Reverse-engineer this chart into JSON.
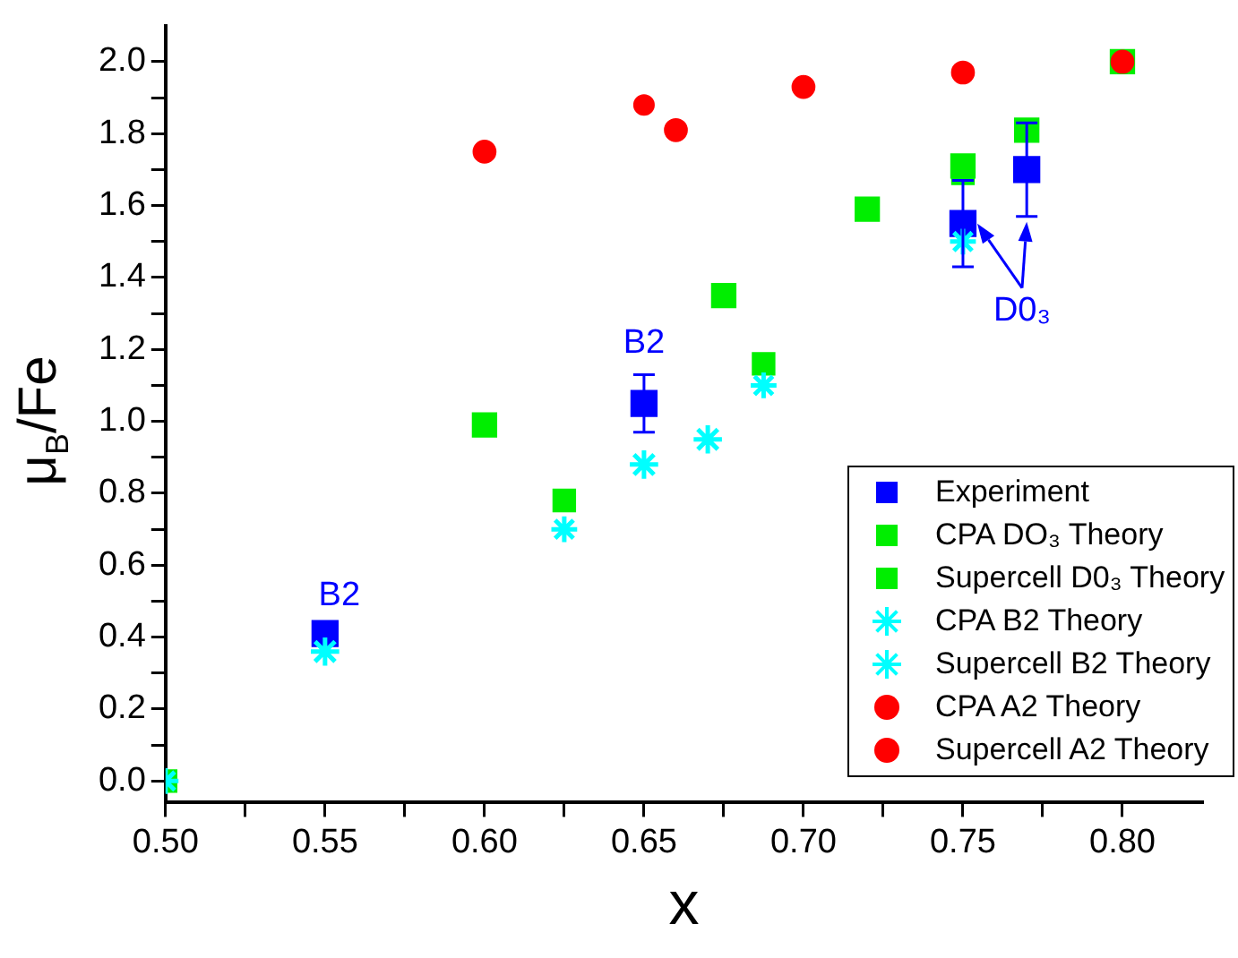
{
  "chart_data": {
    "type": "scatter",
    "xlabel": "x",
    "ylabel": "μ$_{B}$/Fe",
    "xlim": [
      0.5,
      0.825
    ],
    "ylim": [
      -0.06,
      2.1
    ],
    "xticks": [
      {
        "value": 0.5,
        "label": "0.50"
      },
      {
        "value": 0.525,
        "label": null
      },
      {
        "value": 0.55,
        "label": "0.55"
      },
      {
        "value": 0.575,
        "label": null
      },
      {
        "value": 0.6,
        "label": "0.60"
      },
      {
        "value": 0.625,
        "label": null
      },
      {
        "value": 0.65,
        "label": "0.65"
      },
      {
        "value": 0.675,
        "label": null
      },
      {
        "value": 0.7,
        "label": "0.70"
      },
      {
        "value": 0.725,
        "label": null
      },
      {
        "value": 0.75,
        "label": "0.75"
      },
      {
        "value": 0.775,
        "label": null
      },
      {
        "value": 0.8,
        "label": "0.80"
      }
    ],
    "yticks": [
      {
        "value": 0,
        "label": "0.0"
      },
      {
        "value": 0.1,
        "label": null
      },
      {
        "value": 0.2,
        "label": "0.2"
      },
      {
        "value": 0.3,
        "label": null
      },
      {
        "value": 0.4,
        "label": "0.4"
      },
      {
        "value": 0.5,
        "label": null
      },
      {
        "value": 0.6,
        "label": "0.6"
      },
      {
        "value": 0.7,
        "label": null
      },
      {
        "value": 0.8,
        "label": "0.8"
      },
      {
        "value": 0.9,
        "label": null
      },
      {
        "value": 1,
        "label": "1.0"
      },
      {
        "value": 1.1,
        "label": null
      },
      {
        "value": 1.2,
        "label": "1.2"
      },
      {
        "value": 1.3,
        "label": null
      },
      {
        "value": 1.4,
        "label": "1.4"
      },
      {
        "value": 1.5,
        "label": null
      },
      {
        "value": 1.6,
        "label": "1.6"
      },
      {
        "value": 1.7,
        "label": null
      },
      {
        "value": 1.8,
        "label": "1.8"
      },
      {
        "value": 1.9,
        "label": null
      },
      {
        "value": 2,
        "label": "2.0"
      }
    ],
    "grid": false,
    "legend": "bottom right",
    "series": [
      {
        "name": "Experiment",
        "color": "#0000ff",
        "marker": "square",
        "x": [
          0.55,
          0.65,
          0.75,
          0.77
        ],
        "values": [
          0.41,
          1.05,
          1.55,
          1.7
        ],
        "errors": [
          null,
          0.08,
          0.12,
          0.13
        ]
      },
      {
        "name": "CPA DO₃ Theory",
        "color": "#00ee00",
        "marker": "square",
        "x": [
          0.6,
          0.675,
          0.72,
          0.75,
          0.77,
          0.8
        ],
        "values": [
          0.99,
          1.35,
          1.59,
          1.71,
          1.81,
          2.0
        ]
      },
      {
        "name": "Supercell D0₃ Theory",
        "color": "#00ee00",
        "marker": "square",
        "x": [
          0.5,
          0.625,
          0.6875,
          0.75
        ],
        "values": [
          0.0,
          0.78,
          1.16,
          1.69
        ]
      },
      {
        "name": "CPA B2 Theory",
        "color": "#00ffff",
        "marker": "cross",
        "x": [
          0.55,
          0.65,
          0.67
        ],
        "values": [
          0.36,
          0.88,
          0.95
        ]
      },
      {
        "name": "Supercell B2 Theory",
        "color": "#00ffff",
        "marker": "cross",
        "x": [
          0.5,
          0.625,
          0.6875,
          0.75
        ],
        "values": [
          0.0,
          0.7,
          1.1,
          1.5
        ]
      },
      {
        "name": "CPA A2 Theory",
        "color": "#ff0000",
        "marker": "circle",
        "x": [
          0.6,
          0.66,
          0.7,
          0.75,
          0.8
        ],
        "values": [
          1.75,
          1.81,
          1.93,
          1.97,
          2.0
        ]
      },
      {
        "name": "Supercell A2 Theory",
        "color": "#ff0000",
        "marker": "circle",
        "x": [
          0.65
        ],
        "values": [
          1.88
        ]
      }
    ],
    "annotations": [
      {
        "text": "B2",
        "x": 0.55,
        "y": 0.41
      },
      {
        "text": "B2",
        "x": 0.65,
        "y": 1.05
      },
      {
        "text": "D0₃",
        "x": 0.75,
        "y": 1.55
      }
    ]
  }
}
